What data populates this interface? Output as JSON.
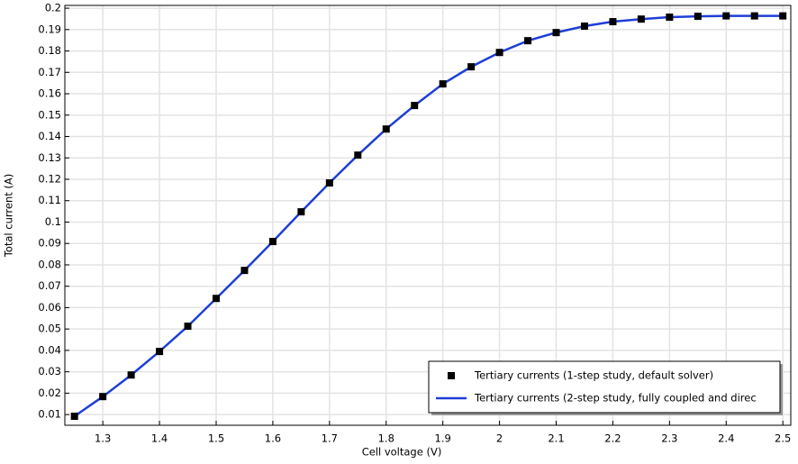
{
  "chart_data": {
    "type": "line",
    "xlabel": "Cell voltage (V)",
    "ylabel": "Total current (A)",
    "x": [
      1.25,
      1.3,
      1.35,
      1.4,
      1.45,
      1.5,
      1.55,
      1.6,
      1.65,
      1.7,
      1.75,
      1.8,
      1.85,
      1.9,
      1.95,
      2.0,
      2.05,
      2.1,
      2.15,
      2.2,
      2.25,
      2.3,
      2.35,
      2.4,
      2.45,
      2.5
    ],
    "series": [
      {
        "name": "Tertiary currents (1-step study, default solver)",
        "color": "#000000",
        "style": "markers",
        "values": [
          0.0092,
          0.0184,
          0.0285,
          0.0395,
          0.0513,
          0.0643,
          0.0774,
          0.0909,
          0.1048,
          0.1183,
          0.1313,
          0.1435,
          0.1545,
          0.1646,
          0.1726,
          0.1793,
          0.1848,
          0.1886,
          0.1916,
          0.1937,
          0.1949,
          0.1958,
          0.1962,
          0.1964,
          0.1964,
          0.1964
        ]
      },
      {
        "name": "Tertiary currents (2-step study, fully coupled and direc",
        "color": "#1f3fd6",
        "style": "line",
        "values": [
          0.0092,
          0.0184,
          0.0285,
          0.0395,
          0.0513,
          0.0643,
          0.0774,
          0.0909,
          0.1048,
          0.1183,
          0.1313,
          0.1435,
          0.1545,
          0.1646,
          0.1726,
          0.1793,
          0.1848,
          0.1886,
          0.1916,
          0.1937,
          0.1949,
          0.1958,
          0.1962,
          0.1964,
          0.1964,
          0.1964
        ]
      }
    ],
    "xlim": [
      1.233,
      2.514
    ],
    "ylim": [
      0.005,
      0.2013
    ],
    "xticks": [
      1.3,
      1.4,
      1.5,
      1.6,
      1.7,
      1.8,
      1.9,
      2,
      2.1,
      2.2,
      2.3,
      2.4,
      2.5
    ],
    "yticks": [
      0.01,
      0.02,
      0.03,
      0.04,
      0.05,
      0.06,
      0.07,
      0.08,
      0.09,
      0.1,
      0.11,
      0.12,
      0.13,
      0.14,
      0.15,
      0.16,
      0.17,
      0.18,
      0.19,
      0.2
    ],
    "grid": true,
    "legend": "lower right"
  }
}
